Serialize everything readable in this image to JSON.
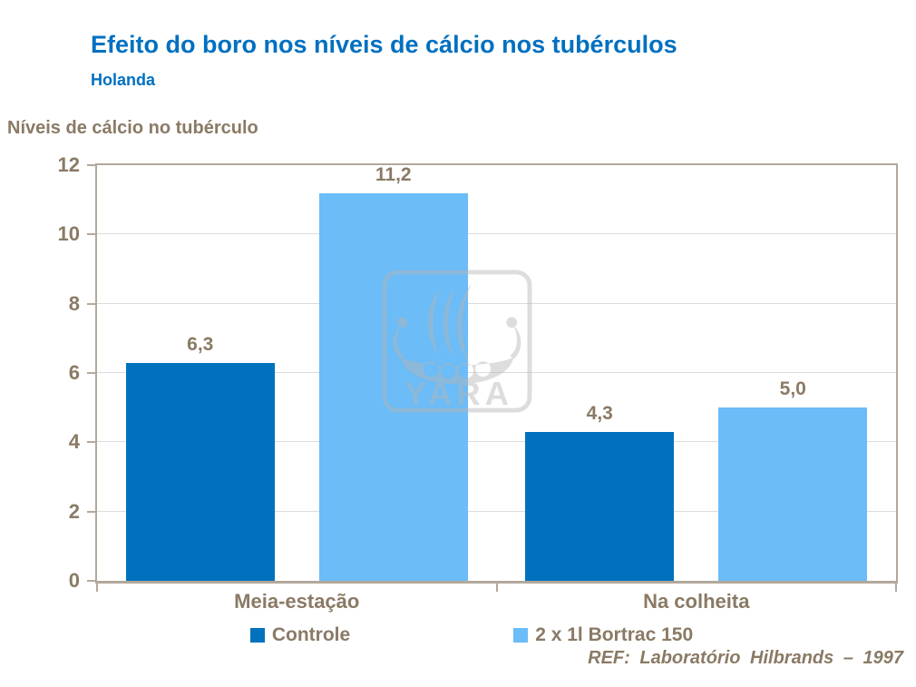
{
  "title": "Efeito do boro nos níveis de cálcio nos tubérculos",
  "subtitle": "Holanda",
  "footer": "REF: Laboratório Hilbrands – 1997",
  "watermark_text": "YARA",
  "colors": {
    "title_blue": "#0070C0",
    "label_brown": "#8A7A65",
    "axis_line": "#B3A89B",
    "gridline": "#DCDCDC",
    "controle_bar": "#0072BD",
    "bortrac_bar": "#6BBCF7",
    "watermark_gray": "#B5B5B5"
  },
  "chart_data": {
    "type": "bar",
    "title": "Efeito do boro nos níveis de cálcio nos tubérculos",
    "subtitle": "Holanda",
    "categories": [
      "Meia-estação",
      "Na colheita"
    ],
    "series": [
      {
        "name": "Controle",
        "color": "#0072BD",
        "values": [
          6.3,
          4.3
        ],
        "value_labels": [
          "6,3",
          "4,3"
        ]
      },
      {
        "name": "2 x 1l Bortrac 150",
        "color": "#6BBCF7",
        "values": [
          11.2,
          5.0
        ],
        "value_labels": [
          "11,2",
          "5,0"
        ]
      }
    ],
    "xlabel": "",
    "ylabel": "Níveis de cálcio no tubérculo",
    "ylim": [
      0,
      12
    ],
    "yticks": [
      0,
      2,
      4,
      6,
      8,
      10,
      12
    ],
    "grid": true,
    "legend_position": "bottom",
    "reference": "REF: Laboratório Hilbrands – 1997"
  }
}
